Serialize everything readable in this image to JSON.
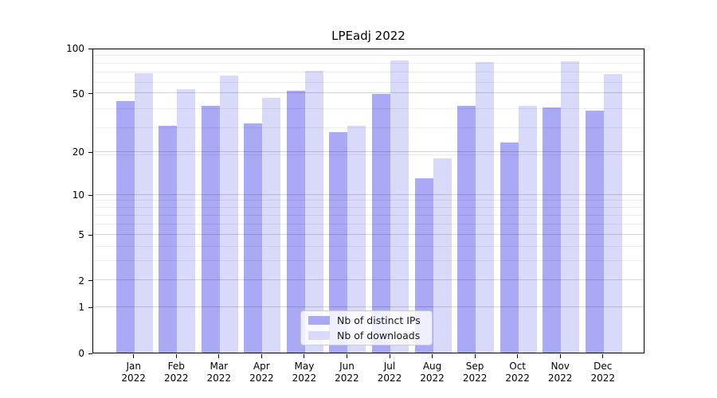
{
  "figure": {
    "title": "LPEadj 2022"
  },
  "chart_data": {
    "type": "bar",
    "title": "LPEadj 2022",
    "categories": [
      "Jan 2022",
      "Feb 2022",
      "Mar 2022",
      "Apr 2022",
      "May 2022",
      "Jun 2022",
      "Jul 2022",
      "Aug 2022",
      "Sep 2022",
      "Oct 2022",
      "Nov 2022",
      "Dec 2022"
    ],
    "months": [
      "Jan",
      "Feb",
      "Mar",
      "Apr",
      "May",
      "Jun",
      "Jul",
      "Aug",
      "Sep",
      "Oct",
      "Nov",
      "Dec"
    ],
    "year": "2022",
    "series": [
      {
        "name": "Nb of distinct IPs",
        "color": "#a9a9f5",
        "values": [
          44,
          30,
          41,
          31,
          52,
          27,
          49,
          13,
          41,
          23,
          40,
          38
        ]
      },
      {
        "name": "Nb of downloads",
        "color": "#d9d9f9",
        "values": [
          68,
          53,
          65,
          46,
          70,
          30,
          82,
          18,
          80,
          41,
          81,
          67
        ]
      }
    ],
    "yscale": "log1p",
    "ylim": [
      0,
      100
    ],
    "yticks": [
      0,
      1,
      2,
      5,
      10,
      20,
      50,
      100
    ],
    "minor_gridlines": [
      3,
      4,
      6,
      7,
      8,
      9,
      19,
      29,
      39,
      59,
      69,
      79,
      89
    ],
    "grid": true,
    "legend_position": "lower center"
  }
}
